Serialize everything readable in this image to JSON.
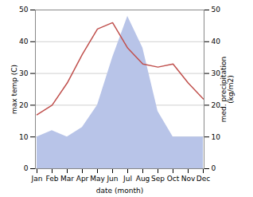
{
  "chart_data": {
    "type": "line",
    "xlabel": "date (month)",
    "ylabel": "max temp (C)",
    "y2label": "med. precipitation\n(kg/m2)",
    "categories": [
      "Jan",
      "Feb",
      "Mar",
      "Apr",
      "May",
      "Jun",
      "Jul",
      "Aug",
      "Sep",
      "Oct",
      "Nov",
      "Dec"
    ],
    "series": [
      {
        "type": "line",
        "color": "#c0504d",
        "values": [
          17,
          20,
          27,
          36,
          44,
          46,
          38,
          33,
          32,
          33,
          27,
          22
        ]
      },
      {
        "type": "area",
        "color": "#b8c4e8",
        "axis": "y2",
        "values": [
          10,
          12,
          10,
          13,
          20,
          35,
          48,
          38,
          18,
          10,
          10,
          10
        ]
      }
    ],
    "ylim": [
      0,
      50
    ],
    "yticks": [
      0,
      10,
      20,
      30,
      40,
      50
    ],
    "y2lim": [
      0,
      50
    ],
    "y2ticks": [
      0,
      10,
      20,
      30,
      40,
      50
    ],
    "grid": true
  }
}
